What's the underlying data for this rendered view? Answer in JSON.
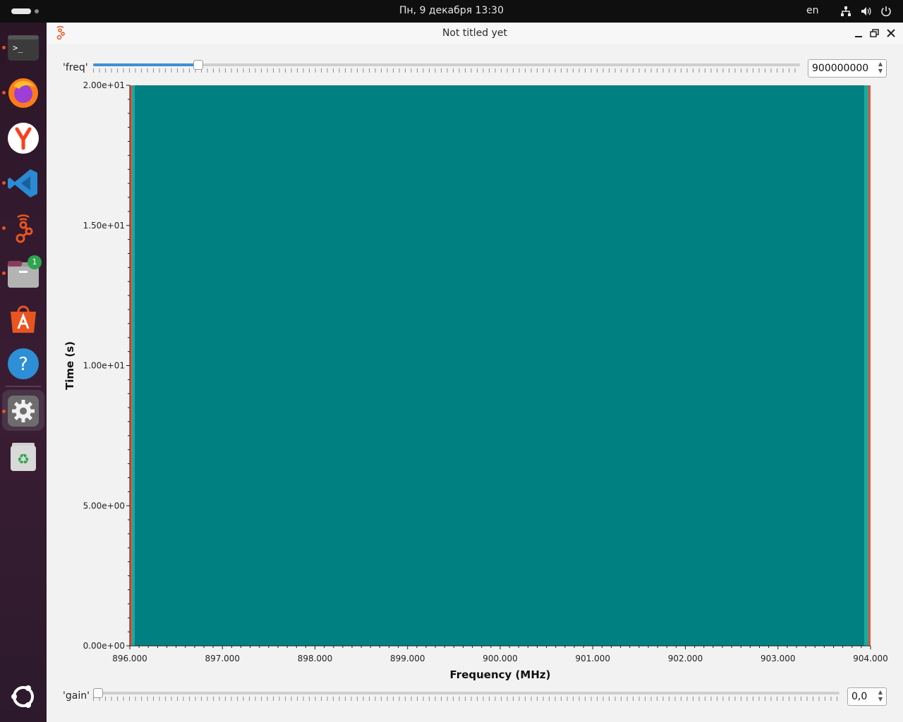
{
  "topbar": {
    "clock": "Пн, 9 декабря  13:30",
    "language": "en",
    "icons": [
      "network-icon",
      "volume-icon",
      "power-icon"
    ]
  },
  "dock": {
    "items": [
      {
        "name": "terminal",
        "badge": ""
      },
      {
        "name": "firefox",
        "badge": ""
      },
      {
        "name": "yandex-browser",
        "badge": ""
      },
      {
        "name": "vscode",
        "badge": ""
      },
      {
        "name": "gnuradio",
        "badge": ""
      },
      {
        "name": "files",
        "badge": "1"
      },
      {
        "name": "app-center",
        "badge": ""
      },
      {
        "name": "help",
        "badge": ""
      },
      {
        "name": "settings",
        "badge": ""
      },
      {
        "name": "trash",
        "badge": ""
      },
      {
        "name": "show-apps",
        "badge": ""
      }
    ]
  },
  "window": {
    "title": "Not titled yet",
    "freq": {
      "label": "'freq'",
      "value": "900000000",
      "slider_fraction": 0.148
    },
    "gain": {
      "label": "'gain'",
      "value": "0,0",
      "slider_fraction": 0.0
    }
  },
  "chart_data": {
    "type": "heatmap",
    "title": "",
    "xlabel": "Frequency (MHz)",
    "ylabel": "Time (s)",
    "xlim": [
      896.0,
      904.0
    ],
    "ylim": [
      0,
      20
    ],
    "x_ticks": [
      "896.000",
      "897.000",
      "898.000",
      "899.000",
      "900.000",
      "901.000",
      "902.000",
      "903.000",
      "904.000"
    ],
    "y_ticks": [
      "0.00e+00",
      "5.00e+00",
      "1.00e+01",
      "1.50e+01",
      "2.00e+01"
    ],
    "fill_color": "#008080",
    "edge_colors": [
      "#e0553f",
      "#1fa89c"
    ]
  },
  "colors": {
    "accent": "#3d8fd6",
    "ubuntu_orange": "#e95420"
  }
}
